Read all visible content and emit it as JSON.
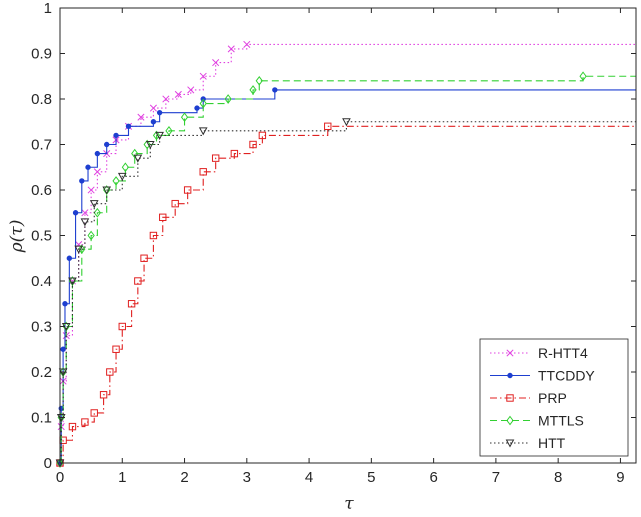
{
  "chart_data": {
    "type": "line",
    "title": "",
    "xlabel": "τ",
    "ylabel": "ρ(τ)",
    "xlim": [
      0,
      9.25
    ],
    "ylim": [
      0,
      1
    ],
    "x_ticks": [
      "0",
      "1",
      "2",
      "3",
      "4",
      "5",
      "6",
      "7",
      "8",
      "9"
    ],
    "y_ticks": [
      "0",
      "0.1",
      "0.2",
      "0.3",
      "0.4",
      "0.5",
      "0.6",
      "0.7",
      "0.8",
      "0.9",
      "1"
    ],
    "grid": false,
    "legend_position": "bottom-right",
    "series": [
      {
        "name": "R-HTT4",
        "color": "#e040e0",
        "marker": "x",
        "line_style": "dotted",
        "points": [
          [
            0,
            0
          ],
          [
            0.02,
            0.08
          ],
          [
            0.05,
            0.18
          ],
          [
            0.1,
            0.28
          ],
          [
            0.2,
            0.4
          ],
          [
            0.3,
            0.48
          ],
          [
            0.4,
            0.55
          ],
          [
            0.5,
            0.6
          ],
          [
            0.6,
            0.64
          ],
          [
            0.75,
            0.68
          ],
          [
            0.9,
            0.71
          ],
          [
            1.1,
            0.74
          ],
          [
            1.3,
            0.76
          ],
          [
            1.5,
            0.78
          ],
          [
            1.7,
            0.8
          ],
          [
            1.9,
            0.81
          ],
          [
            2.1,
            0.82
          ],
          [
            2.3,
            0.85
          ],
          [
            2.5,
            0.88
          ],
          [
            2.75,
            0.91
          ],
          [
            3.0,
            0.92
          ],
          [
            9.25,
            0.92
          ]
        ]
      },
      {
        "name": "TTCDDY",
        "color": "#1e3fd0",
        "marker": "dot",
        "line_style": "solid",
        "points": [
          [
            0,
            0
          ],
          [
            0.02,
            0.12
          ],
          [
            0.05,
            0.25
          ],
          [
            0.08,
            0.35
          ],
          [
            0.15,
            0.45
          ],
          [
            0.25,
            0.55
          ],
          [
            0.35,
            0.62
          ],
          [
            0.45,
            0.65
          ],
          [
            0.6,
            0.68
          ],
          [
            0.75,
            0.7
          ],
          [
            0.9,
            0.72
          ],
          [
            1.1,
            0.74
          ],
          [
            1.5,
            0.75
          ],
          [
            1.6,
            0.77
          ],
          [
            2.2,
            0.78
          ],
          [
            2.3,
            0.8
          ],
          [
            3.45,
            0.82
          ],
          [
            9.25,
            0.82
          ]
        ]
      },
      {
        "name": "PRP",
        "color": "#e02020",
        "marker": "square",
        "line_style": "dashdot",
        "points": [
          [
            0,
            0
          ],
          [
            0.05,
            0.05
          ],
          [
            0.2,
            0.08
          ],
          [
            0.4,
            0.09
          ],
          [
            0.55,
            0.11
          ],
          [
            0.7,
            0.15
          ],
          [
            0.8,
            0.2
          ],
          [
            0.9,
            0.25
          ],
          [
            1.0,
            0.3
          ],
          [
            1.15,
            0.35
          ],
          [
            1.25,
            0.4
          ],
          [
            1.35,
            0.45
          ],
          [
            1.5,
            0.5
          ],
          [
            1.65,
            0.54
          ],
          [
            1.85,
            0.57
          ],
          [
            2.05,
            0.6
          ],
          [
            2.3,
            0.64
          ],
          [
            2.5,
            0.67
          ],
          [
            2.8,
            0.68
          ],
          [
            3.1,
            0.7
          ],
          [
            3.25,
            0.72
          ],
          [
            4.3,
            0.74
          ],
          [
            9.25,
            0.74
          ]
        ]
      },
      {
        "name": "MTTLS",
        "color": "#32d032",
        "marker": "diamond",
        "line_style": "dashed",
        "points": [
          [
            0,
            0
          ],
          [
            0.02,
            0.1
          ],
          [
            0.05,
            0.2
          ],
          [
            0.1,
            0.3
          ],
          [
            0.2,
            0.4
          ],
          [
            0.35,
            0.47
          ],
          [
            0.5,
            0.5
          ],
          [
            0.6,
            0.55
          ],
          [
            0.75,
            0.6
          ],
          [
            0.9,
            0.62
          ],
          [
            1.05,
            0.65
          ],
          [
            1.2,
            0.68
          ],
          [
            1.4,
            0.7
          ],
          [
            1.55,
            0.72
          ],
          [
            1.75,
            0.73
          ],
          [
            2.0,
            0.76
          ],
          [
            2.3,
            0.79
          ],
          [
            2.7,
            0.8
          ],
          [
            3.1,
            0.82
          ],
          [
            3.2,
            0.84
          ],
          [
            8.4,
            0.85
          ],
          [
            9.25,
            0.85
          ]
        ]
      },
      {
        "name": "HTT",
        "color": "#303030",
        "marker": "triangle-down",
        "line_style": "dotted",
        "points": [
          [
            0,
            0
          ],
          [
            0.02,
            0.1
          ],
          [
            0.05,
            0.2
          ],
          [
            0.1,
            0.3
          ],
          [
            0.2,
            0.4
          ],
          [
            0.3,
            0.47
          ],
          [
            0.4,
            0.53
          ],
          [
            0.55,
            0.57
          ],
          [
            0.75,
            0.6
          ],
          [
            1.0,
            0.63
          ],
          [
            1.25,
            0.67
          ],
          [
            1.45,
            0.7
          ],
          [
            1.6,
            0.72
          ],
          [
            2.3,
            0.73
          ],
          [
            4.6,
            0.75
          ],
          [
            9.25,
            0.75
          ]
        ]
      }
    ]
  }
}
